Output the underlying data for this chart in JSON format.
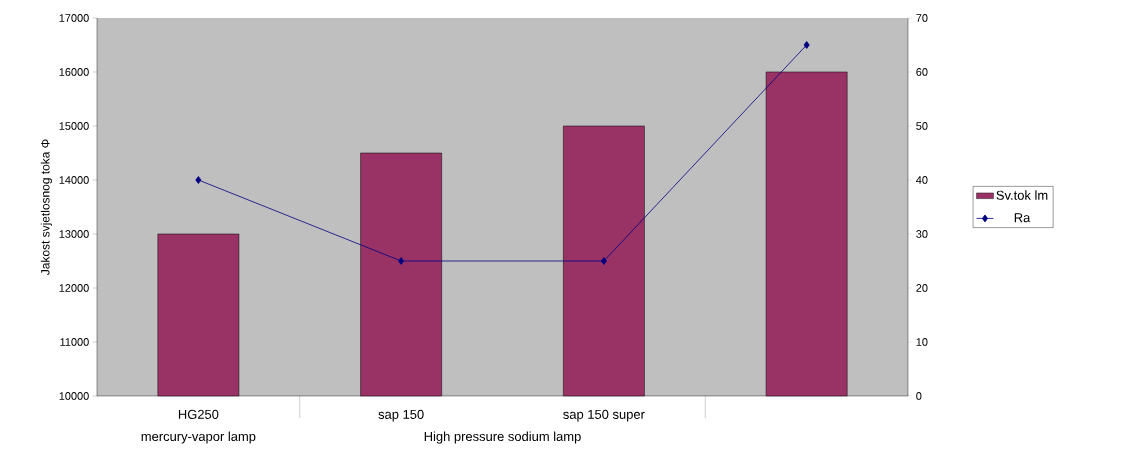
{
  "chart_data": {
    "type": "bar",
    "ylabel": "Jakost svjetlosnog toka Φ",
    "categories": [
      "HG250",
      "sap 150",
      "sap 150 super",
      null
    ],
    "series": [
      {
        "name": "Sv.tok lm",
        "color": "#993366",
        "values": [
          13000,
          14500,
          15000,
          16000
        ]
      },
      {
        "name": "Ra",
        "type": "line",
        "axis": "y2",
        "color": "#000080",
        "values": [
          40,
          25,
          25,
          65
        ]
      }
    ],
    "ylim": [
      10000,
      17000
    ],
    "yticks": [
      10000,
      11000,
      12000,
      13000,
      14000,
      15000,
      16000,
      17000
    ],
    "y2lim": [
      0,
      70
    ],
    "y2ticks": [
      0,
      10,
      20,
      30,
      40,
      50,
      60,
      70
    ],
    "marker": "diamond",
    "legend": "right",
    "grid": false,
    "annotations": [
      "mercury-vapor lamp",
      "High pressure sodium lamp"
    ]
  }
}
